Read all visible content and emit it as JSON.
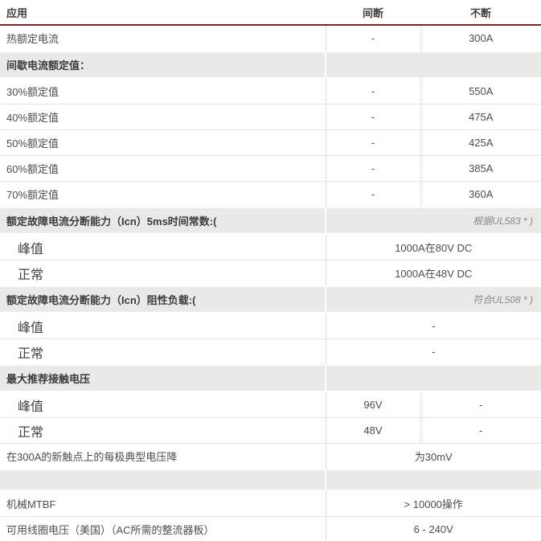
{
  "accent_color": "#8e1f2f",
  "section_bg_color": "#e9e9e7",
  "header": {
    "application": "应用",
    "intermittent": "间断",
    "continuous": "不断"
  },
  "rows": [
    {
      "type": "data",
      "label": "热额定电流",
      "intermittent": "-",
      "continuous": "300A"
    },
    {
      "type": "section",
      "label": "间歇电流额定值：",
      "note": ""
    },
    {
      "type": "data",
      "label": "30%额定值",
      "intermittent": "-",
      "continuous": "550A"
    },
    {
      "type": "data",
      "label": "40%额定值",
      "intermittent": "-",
      "continuous": "475A"
    },
    {
      "type": "data",
      "label": "50%额定值",
      "intermittent": "-",
      "continuous": "425A"
    },
    {
      "type": "data",
      "label": "60%额定值",
      "intermittent": "-",
      "continuous": "385A"
    },
    {
      "type": "data",
      "label": "70%额定值",
      "intermittent": "-",
      "continuous": "360A"
    },
    {
      "type": "section",
      "label": "额定故障电流分断能力（Icn）5ms时间常数:(",
      "note": "根据UL583 * )"
    },
    {
      "type": "subspan",
      "label": "峰值",
      "value": "1000A在80V DC"
    },
    {
      "type": "subspan",
      "label": "正常",
      "value": "1000A在48V DC"
    },
    {
      "type": "section",
      "label": "额定故障电流分断能力（Icn）阻性负载:(",
      "note": "符合UL508 * )"
    },
    {
      "type": "subspan",
      "label": "峰值",
      "value": "-"
    },
    {
      "type": "subspan",
      "label": "正常",
      "value": "-"
    },
    {
      "type": "section",
      "label": "最大推荐接触电压",
      "note": ""
    },
    {
      "type": "subdata",
      "label": "峰值",
      "intermittent": "96V",
      "continuous": "-"
    },
    {
      "type": "subdata",
      "label": "正常",
      "intermittent": "48V",
      "continuous": "-"
    },
    {
      "type": "dataspan",
      "label": "在300A的新触点上的每极典型电压降",
      "value": "为30mV"
    },
    {
      "type": "spacer",
      "label": "",
      "note": ""
    },
    {
      "type": "dataspan",
      "label": "机械MTBF",
      "value": "> 10000操作"
    },
    {
      "type": "dataspan",
      "label": "可用线圈电压（美国）（AC所需的整流器板）",
      "value": "6 - 240V"
    }
  ]
}
